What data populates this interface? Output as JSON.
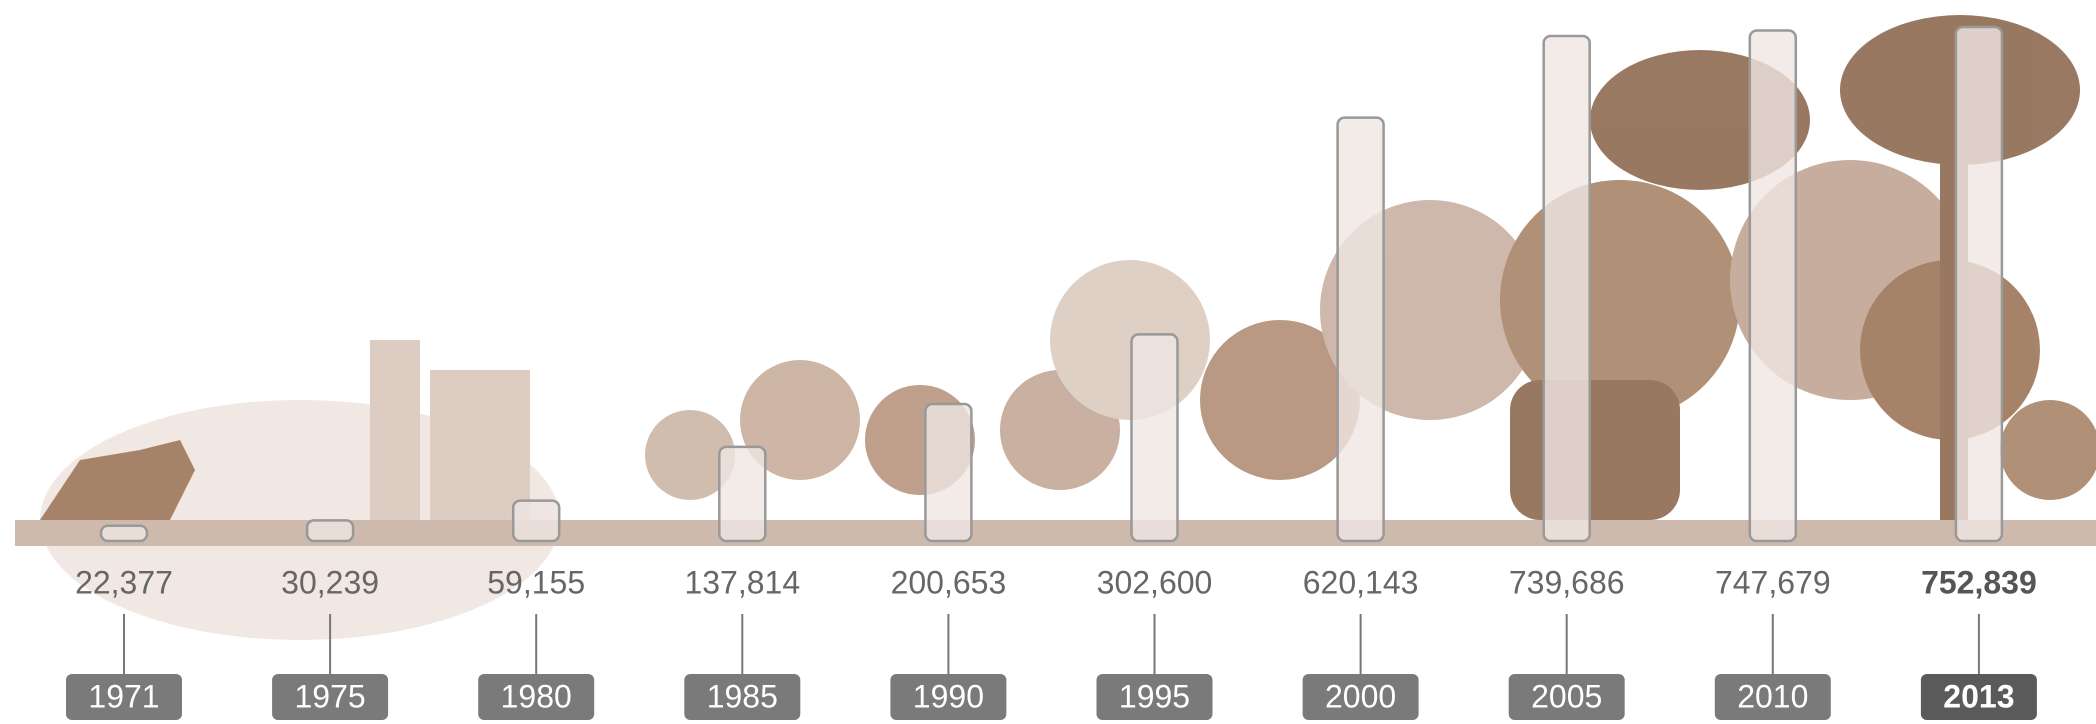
{
  "chart_data": {
    "type": "bar",
    "categories": [
      "1971",
      "1975",
      "1980",
      "1985",
      "1990",
      "1995",
      "2000",
      "2005",
      "2010",
      "2013"
    ],
    "values": [
      22377,
      30239,
      59155,
      137814,
      200653,
      302600,
      620143,
      739686,
      747679,
      752839
    ],
    "value_labels": [
      "22,377",
      "30,239",
      "59,155",
      "137,814",
      "200,653",
      "302,600",
      "620,143",
      "739,686",
      "747,679",
      "752,839"
    ],
    "color": "#efe6e2"
  }
}
